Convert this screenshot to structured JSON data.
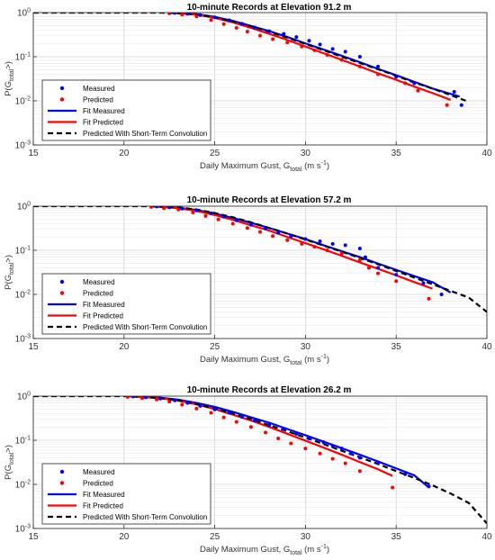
{
  "chart_data": [
    {
      "type": "scatter+line",
      "title": "10-minute Records at Elevation 91.2 m",
      "xlabel": "Daily Maximum Gust, G",
      "xlabel_sub": "total",
      "xlabel_unit_pre": " (m s",
      "xlabel_unit_sup": "-1",
      "xlabel_unit_post": ")",
      "ylabel": "P(G",
      "ylabel_sub": "total",
      "ylabel_post": ">)",
      "xlim": [
        15,
        40
      ],
      "ylim": [
        0.001,
        1
      ],
      "yscale": "log",
      "grid": true,
      "legend_position": "bottom-left",
      "xticks": [
        "15",
        "20",
        "25",
        "30",
        "35",
        "40"
      ],
      "yticks": [
        {
          "base": "10",
          "exp": "0"
        },
        {
          "base": "10",
          "exp": "-1"
        },
        {
          "base": "10",
          "exp": "-2"
        },
        {
          "base": "10",
          "exp": "-3"
        }
      ],
      "series": [
        {
          "name": "Measured",
          "kind": "points",
          "color": "#0000ff",
          "x": [
            22.8,
            23.5,
            24.2,
            25.0,
            25.8,
            26.5,
            27.2,
            28.0,
            28.8,
            29.5,
            30.2,
            30.8,
            31.5,
            32.2,
            33.0,
            34.0,
            35.0,
            36.0,
            38.2,
            38.6
          ],
          "y": [
            0.98,
            0.94,
            0.88,
            0.78,
            0.67,
            0.56,
            0.46,
            0.38,
            0.33,
            0.28,
            0.23,
            0.19,
            0.15,
            0.13,
            0.1,
            0.06,
            0.035,
            0.025,
            0.016,
            0.008
          ]
        },
        {
          "name": "Predicted",
          "kind": "points",
          "color": "#ff0000",
          "x": [
            22.5,
            23.2,
            24.0,
            24.8,
            25.5,
            26.2,
            26.8,
            27.5,
            28.2,
            29.0,
            29.8,
            30.5,
            31.2,
            32.0,
            33.0,
            34.0,
            35.5,
            36.2,
            37.8
          ],
          "y": [
            0.96,
            0.9,
            0.82,
            0.68,
            0.55,
            0.45,
            0.37,
            0.3,
            0.25,
            0.21,
            0.17,
            0.14,
            0.11,
            0.085,
            0.06,
            0.04,
            0.025,
            0.017,
            0.008
          ]
        },
        {
          "name": "Fit Measured",
          "kind": "line",
          "color": "#0000ff",
          "dash": "",
          "x": [
            22.5,
            24,
            25,
            26,
            27,
            28,
            29,
            30,
            31,
            32,
            33,
            34,
            35,
            36,
            37,
            38.5
          ],
          "y": [
            1.0,
            0.92,
            0.8,
            0.65,
            0.5,
            0.38,
            0.28,
            0.2,
            0.145,
            0.105,
            0.075,
            0.053,
            0.038,
            0.027,
            0.019,
            0.0125
          ]
        },
        {
          "name": "Fit Predicted",
          "kind": "line",
          "color": "#ff0000",
          "dash": "",
          "x": [
            22.5,
            24,
            25,
            26,
            27,
            28,
            29,
            30,
            31,
            32,
            33,
            34,
            35,
            36,
            37,
            38
          ],
          "y": [
            1.0,
            0.9,
            0.76,
            0.6,
            0.45,
            0.33,
            0.24,
            0.17,
            0.12,
            0.085,
            0.06,
            0.042,
            0.03,
            0.021,
            0.015,
            0.0105
          ]
        },
        {
          "name": "Predicted With Short-Term Convolution",
          "kind": "line",
          "color": "#000000",
          "dash": "6,4",
          "x": [
            15,
            20,
            22,
            23,
            24,
            25,
            26,
            27,
            28,
            29,
            30,
            31,
            32,
            33,
            34,
            35,
            36,
            37,
            38,
            39
          ],
          "y": [
            1.0,
            1.0,
            1.0,
            0.97,
            0.9,
            0.78,
            0.63,
            0.49,
            0.37,
            0.27,
            0.195,
            0.14,
            0.1,
            0.072,
            0.052,
            0.037,
            0.026,
            0.019,
            0.0135,
            0.0095
          ]
        }
      ]
    },
    {
      "type": "scatter+line",
      "title": "10-minute Records at Elevation 57.2 m",
      "xlabel": "Daily Maximum Gust, G",
      "xlabel_sub": "total",
      "xlabel_unit_pre": " (m s",
      "xlabel_unit_sup": "-1",
      "xlabel_unit_post": ")",
      "ylabel": "P(G",
      "ylabel_sub": "total",
      "ylabel_post": ">)",
      "xlim": [
        15,
        40
      ],
      "ylim": [
        0.001,
        1
      ],
      "yscale": "log",
      "grid": true,
      "legend_position": "bottom-left",
      "xticks": [
        "15",
        "20",
        "25",
        "30",
        "35",
        "40"
      ],
      "yticks": [
        {
          "base": "10",
          "exp": "0"
        },
        {
          "base": "10",
          "exp": "-1"
        },
        {
          "base": "10",
          "exp": "-2"
        },
        {
          "base": "10",
          "exp": "-3"
        }
      ],
      "series": [
        {
          "name": "Measured",
          "kind": "points",
          "color": "#0000ff",
          "x": [
            21.8,
            22.5,
            23.2,
            24.0,
            24.8,
            25.5,
            26.2,
            27.0,
            27.8,
            28.5,
            29.2,
            30.0,
            30.8,
            31.5,
            32.2,
            33.0,
            33.3,
            34.0,
            35.0,
            36.5,
            37.5
          ],
          "y": [
            0.98,
            0.94,
            0.88,
            0.8,
            0.69,
            0.58,
            0.48,
            0.38,
            0.31,
            0.25,
            0.21,
            0.18,
            0.16,
            0.14,
            0.13,
            0.11,
            0.07,
            0.04,
            0.028,
            0.018,
            0.01
          ]
        },
        {
          "name": "Predicted",
          "kind": "points",
          "color": "#ff0000",
          "x": [
            21.5,
            22.2,
            23.0,
            23.8,
            24.5,
            25.2,
            26.0,
            26.8,
            27.5,
            28.2,
            29.0,
            29.8,
            30.5,
            31.2,
            32.0,
            33.0,
            33.5,
            34.0,
            35.0,
            36.8
          ],
          "y": [
            0.96,
            0.9,
            0.84,
            0.72,
            0.6,
            0.5,
            0.4,
            0.32,
            0.26,
            0.21,
            0.17,
            0.14,
            0.12,
            0.1,
            0.085,
            0.06,
            0.04,
            0.03,
            0.02,
            0.008
          ]
        },
        {
          "name": "Fit Measured",
          "kind": "line",
          "color": "#0000ff",
          "dash": "",
          "x": [
            21.5,
            23,
            24,
            25,
            26,
            27,
            28,
            29,
            30,
            31,
            32,
            33,
            34,
            35,
            36,
            37,
            38
          ],
          "y": [
            1.0,
            0.92,
            0.82,
            0.68,
            0.54,
            0.42,
            0.32,
            0.24,
            0.18,
            0.13,
            0.095,
            0.07,
            0.05,
            0.036,
            0.026,
            0.019,
            0.011
          ]
        },
        {
          "name": "Fit Predicted",
          "kind": "line",
          "color": "#ff0000",
          "dash": "",
          "x": [
            21.5,
            23,
            24,
            25,
            26,
            27,
            28,
            29,
            30,
            31,
            32,
            33,
            34,
            35,
            36,
            37
          ],
          "y": [
            1.0,
            0.9,
            0.78,
            0.63,
            0.49,
            0.37,
            0.28,
            0.2,
            0.145,
            0.105,
            0.075,
            0.053,
            0.038,
            0.027,
            0.019,
            0.0135
          ]
        },
        {
          "name": "Predicted With Short-Term Convolution",
          "kind": "line",
          "color": "#000000",
          "dash": "6,4",
          "x": [
            15,
            20,
            21.5,
            23,
            24,
            25,
            26,
            27,
            28,
            29,
            30,
            31,
            32,
            33,
            34,
            35,
            36,
            37,
            38,
            39,
            40
          ],
          "y": [
            1.0,
            1.0,
            1.0,
            0.94,
            0.84,
            0.7,
            0.56,
            0.43,
            0.32,
            0.24,
            0.175,
            0.128,
            0.093,
            0.067,
            0.048,
            0.034,
            0.024,
            0.017,
            0.012,
            0.0085,
            0.004
          ]
        }
      ]
    },
    {
      "type": "scatter+line",
      "title": "10-minute Records at Elevation 26.2 m",
      "xlabel": "Daily Maximum Gust, G",
      "xlabel_sub": "total",
      "xlabel_unit_pre": " (m s",
      "xlabel_unit_sup": "-1",
      "xlabel_unit_post": ")",
      "ylabel": "P(G",
      "ylabel_sub": "total",
      "ylabel_post": ">)",
      "xlim": [
        15,
        40
      ],
      "ylim": [
        0.001,
        1
      ],
      "yscale": "log",
      "grid": true,
      "legend_position": "bottom-left",
      "xticks": [
        "15",
        "20",
        "25",
        "30",
        "35",
        "40"
      ],
      "yticks": [
        {
          "base": "10",
          "exp": "0"
        },
        {
          "base": "10",
          "exp": "-1"
        },
        {
          "base": "10",
          "exp": "-2"
        },
        {
          "base": "10",
          "exp": "-3"
        }
      ],
      "series": [
        {
          "name": "Measured",
          "kind": "points",
          "color": "#0000ff",
          "x": [
            20.5,
            21.2,
            22.0,
            22.8,
            23.5,
            24.2,
            25.0,
            25.8,
            26.5,
            27.2,
            28.0,
            28.8,
            29.5,
            30.2,
            31.0,
            31.5,
            32.0,
            32.5,
            33.0,
            34.0,
            35.5,
            36.8
          ],
          "y": [
            0.98,
            0.94,
            0.88,
            0.8,
            0.7,
            0.6,
            0.5,
            0.42,
            0.34,
            0.28,
            0.22,
            0.18,
            0.14,
            0.11,
            0.09,
            0.075,
            0.065,
            0.05,
            0.04,
            0.03,
            0.017,
            0.009
          ]
        },
        {
          "name": "Predicted",
          "kind": "points",
          "color": "#ff0000",
          "x": [
            20.2,
            21.0,
            21.8,
            22.5,
            23.2,
            24.0,
            24.8,
            25.5,
            26.2,
            27.0,
            27.8,
            28.5,
            29.2,
            30.0,
            30.8,
            31.5,
            32.2,
            33.0,
            34.8
          ],
          "y": [
            0.96,
            0.9,
            0.84,
            0.75,
            0.64,
            0.52,
            0.42,
            0.33,
            0.26,
            0.2,
            0.15,
            0.11,
            0.085,
            0.065,
            0.05,
            0.038,
            0.03,
            0.02,
            0.0085
          ]
        },
        {
          "name": "Fit Measured",
          "kind": "line",
          "color": "#0000ff",
          "dash": "",
          "x": [
            20.2,
            22,
            23,
            24,
            25,
            26,
            27,
            28,
            29,
            30,
            31,
            32,
            33,
            34,
            35,
            36,
            36.8
          ],
          "y": [
            1.0,
            0.92,
            0.83,
            0.7,
            0.57,
            0.44,
            0.33,
            0.25,
            0.18,
            0.13,
            0.093,
            0.066,
            0.047,
            0.033,
            0.023,
            0.016,
            0.0085
          ]
        },
        {
          "name": "Fit Predicted",
          "kind": "line",
          "color": "#ff0000",
          "dash": "",
          "x": [
            20.2,
            22,
            23,
            24,
            25,
            26,
            27,
            28,
            29,
            30,
            31,
            32,
            33,
            34,
            34.8
          ],
          "y": [
            1.0,
            0.9,
            0.79,
            0.65,
            0.51,
            0.38,
            0.28,
            0.2,
            0.14,
            0.098,
            0.068,
            0.047,
            0.032,
            0.022,
            0.0155
          ]
        },
        {
          "name": "Predicted With Short-Term Convolution",
          "kind": "line",
          "color": "#000000",
          "dash": "6,4",
          "x": [
            15,
            19,
            20.2,
            22,
            23,
            24,
            25,
            26,
            27,
            28,
            29,
            30,
            31,
            32,
            33,
            34,
            35,
            36,
            37,
            38,
            39,
            40
          ],
          "y": [
            1.0,
            1.0,
            1.0,
            0.9,
            0.8,
            0.66,
            0.52,
            0.4,
            0.3,
            0.22,
            0.16,
            0.115,
            0.082,
            0.058,
            0.041,
            0.029,
            0.02,
            0.014,
            0.0095,
            0.0062,
            0.0038,
            0.0013
          ]
        }
      ]
    }
  ]
}
